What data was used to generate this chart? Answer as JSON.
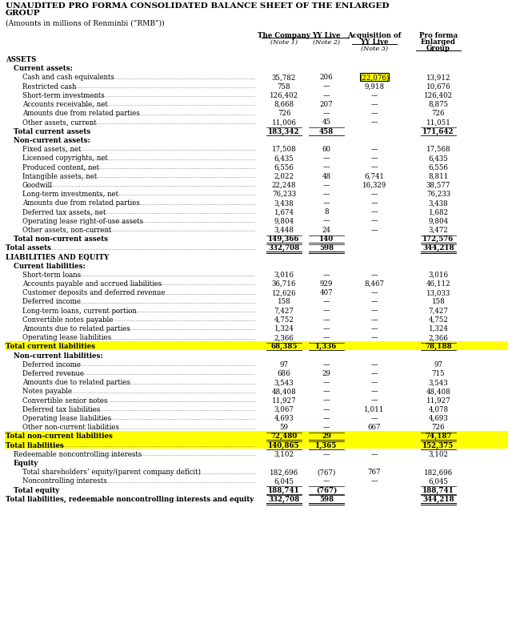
{
  "title_line1": "UNAUDITED PRO FORMA CONSOLIDATED BALANCE SHEET OF THE ENLARGED",
  "title_line2": "GROUP",
  "subtitle": "(Amounts in millions of Renminbi (“RMB”))",
  "rows": [
    {
      "label": "ASSETS",
      "level": 0,
      "bold": true,
      "values": [
        "",
        "",
        "",
        ""
      ],
      "style": "header"
    },
    {
      "label": "Current assets:",
      "level": 1,
      "bold": true,
      "values": [
        "",
        "",
        "",
        ""
      ],
      "style": "subheader"
    },
    {
      "label": "Cash and cash equivalents",
      "level": 2,
      "bold": false,
      "values": [
        "35,782",
        "206",
        "(22,076)",
        "13,912"
      ],
      "style": "normal",
      "highlight_col2": true,
      "dots": true
    },
    {
      "label": "Restricted cash",
      "level": 2,
      "bold": false,
      "values": [
        "758",
        "—",
        "9,918",
        "10,676"
      ],
      "style": "normal",
      "dots": true
    },
    {
      "label": "Short-term investments",
      "level": 2,
      "bold": false,
      "values": [
        "126,402",
        "—",
        "—",
        "126,402"
      ],
      "style": "normal",
      "dots": true
    },
    {
      "label": "Accounts receivable, net",
      "level": 2,
      "bold": false,
      "values": [
        "8,668",
        "207",
        "—",
        "8,875"
      ],
      "style": "normal",
      "dots": true
    },
    {
      "label": "Amounts due from related parties",
      "level": 2,
      "bold": false,
      "values": [
        "726",
        "—",
        "—",
        "726"
      ],
      "style": "normal",
      "dots": true
    },
    {
      "label": "Other assets, current",
      "level": 2,
      "bold": false,
      "values": [
        "11,006",
        "45",
        "—",
        "11,051"
      ],
      "style": "normal",
      "dots": true
    },
    {
      "label": "Total current assets",
      "level": 1,
      "bold": true,
      "values": [
        "183,342",
        "458",
        "",
        "171,642"
      ],
      "style": "total_single"
    },
    {
      "label": "Non-current assets:",
      "level": 1,
      "bold": true,
      "values": [
        "",
        "",
        "",
        ""
      ],
      "style": "subheader"
    },
    {
      "label": "Fixed assets, net",
      "level": 2,
      "bold": false,
      "values": [
        "17,508",
        "60",
        "—",
        "17,568"
      ],
      "style": "normal",
      "dots": true
    },
    {
      "label": "Licensed copyrights, net",
      "level": 2,
      "bold": false,
      "values": [
        "6,435",
        "—",
        "—",
        "6,435"
      ],
      "style": "normal",
      "dots": true
    },
    {
      "label": "Produced content, net",
      "level": 2,
      "bold": false,
      "values": [
        "6,556",
        "—",
        "—",
        "6,556"
      ],
      "style": "normal",
      "dots": true
    },
    {
      "label": "Intangible assets, net",
      "level": 2,
      "bold": false,
      "values": [
        "2,022",
        "48",
        "6,741",
        "8,811"
      ],
      "style": "normal",
      "dots": true
    },
    {
      "label": "Goodwill",
      "level": 2,
      "bold": false,
      "values": [
        "22,248",
        "—",
        "16,329",
        "38,577"
      ],
      "style": "normal",
      "dots": true
    },
    {
      "label": "Long-term investments, net",
      "level": 2,
      "bold": false,
      "values": [
        "76,233",
        "—",
        "—",
        "76,233"
      ],
      "style": "normal",
      "dots": true
    },
    {
      "label": "Amounts due from related parties",
      "level": 2,
      "bold": false,
      "values": [
        "3,438",
        "—",
        "—",
        "3,438"
      ],
      "style": "normal",
      "dots": true
    },
    {
      "label": "Deferred tax assets, net",
      "level": 2,
      "bold": false,
      "values": [
        "1,674",
        "8",
        "—",
        "1,682"
      ],
      "style": "normal",
      "dots": true
    },
    {
      "label": "Operating lease right-of-use assets",
      "level": 2,
      "bold": false,
      "values": [
        "9,804",
        "—",
        "—",
        "9,804"
      ],
      "style": "normal",
      "dots": true
    },
    {
      "label": "Other assets, non-current",
      "level": 2,
      "bold": false,
      "values": [
        "3,448",
        "24",
        "—",
        "3,472"
      ],
      "style": "normal",
      "dots": true
    },
    {
      "label": "Total non-current assets",
      "level": 1,
      "bold": true,
      "values": [
        "149,366",
        "140",
        "",
        "172,576"
      ],
      "style": "total_single"
    },
    {
      "label": "Total assets",
      "level": 0,
      "bold": true,
      "values": [
        "332,708",
        "598",
        "",
        "344,218"
      ],
      "style": "total_double",
      "dots": true
    },
    {
      "label": "LIABILITIES AND EQUITY",
      "level": 0,
      "bold": true,
      "values": [
        "",
        "",
        "",
        ""
      ],
      "style": "header"
    },
    {
      "label": "Current liabilities:",
      "level": 1,
      "bold": true,
      "values": [
        "",
        "",
        "",
        ""
      ],
      "style": "subheader"
    },
    {
      "label": "Short-term loans",
      "level": 2,
      "bold": false,
      "values": [
        "3,016",
        "—",
        "—",
        "3,016"
      ],
      "style": "normal",
      "dots": true
    },
    {
      "label": "Accounts payable and accrued liabilities",
      "level": 2,
      "bold": false,
      "values": [
        "36,716",
        "929",
        "8,467",
        "46,112"
      ],
      "style": "normal",
      "dots": true
    },
    {
      "label": "Customer deposits and deferred revenue",
      "level": 2,
      "bold": false,
      "values": [
        "12,626",
        "407",
        "—",
        "13,033"
      ],
      "style": "normal",
      "dots": true
    },
    {
      "label": "Deferred income",
      "level": 2,
      "bold": false,
      "values": [
        "158",
        "—",
        "—",
        "158"
      ],
      "style": "normal",
      "dots": true
    },
    {
      "label": "Long-term loans, current portion",
      "level": 2,
      "bold": false,
      "values": [
        "7,427",
        "—",
        "—",
        "7,427"
      ],
      "style": "normal",
      "dots": true
    },
    {
      "label": "Convertible notes payable",
      "level": 2,
      "bold": false,
      "values": [
        "4,752",
        "—",
        "—",
        "4,752"
      ],
      "style": "normal",
      "dots": true
    },
    {
      "label": "Amounts due to related parties",
      "level": 2,
      "bold": false,
      "values": [
        "1,324",
        "—",
        "—",
        "1,324"
      ],
      "style": "normal",
      "dots": true
    },
    {
      "label": "Operating lease liabilities",
      "level": 2,
      "bold": false,
      "values": [
        "2,366",
        "—",
        "—",
        "2,366"
      ],
      "style": "normal",
      "dots": true
    },
    {
      "label": "Total current liabilities",
      "level": 0,
      "bold": true,
      "values": [
        "68,385",
        "1,336",
        "",
        "78,188"
      ],
      "style": "total_highlight"
    },
    {
      "label": "Non-current liabilities:",
      "level": 1,
      "bold": true,
      "values": [
        "",
        "",
        "",
        ""
      ],
      "style": "subheader"
    },
    {
      "label": "Deferred income",
      "level": 2,
      "bold": false,
      "values": [
        "97",
        "—",
        "—",
        "97"
      ],
      "style": "normal",
      "dots": true
    },
    {
      "label": "Deferred revenue",
      "level": 2,
      "bold": false,
      "values": [
        "686",
        "29",
        "—",
        "715"
      ],
      "style": "normal",
      "dots": true
    },
    {
      "label": "Amounts due to related parties",
      "level": 2,
      "bold": false,
      "values": [
        "3,543",
        "—",
        "—",
        "3,543"
      ],
      "style": "normal",
      "dots": true
    },
    {
      "label": "Notes payable",
      "level": 2,
      "bold": false,
      "values": [
        "48,408",
        "—",
        "—",
        "48,408"
      ],
      "style": "normal",
      "dots": true
    },
    {
      "label": "Convertible senior notes",
      "level": 2,
      "bold": false,
      "values": [
        "11,927",
        "—",
        "—",
        "11,927"
      ],
      "style": "normal",
      "dots": true
    },
    {
      "label": "Deferred tax liabilities",
      "level": 2,
      "bold": false,
      "values": [
        "3,067",
        "—",
        "1,011",
        "4,078"
      ],
      "style": "normal",
      "dots": true
    },
    {
      "label": "Operating lease liabilities",
      "level": 2,
      "bold": false,
      "values": [
        "4,693",
        "—",
        "—",
        "4,693"
      ],
      "style": "normal",
      "dots": true
    },
    {
      "label": "Other non-current liabilities",
      "level": 2,
      "bold": false,
      "values": [
        "59",
        "—",
        "667",
        "726"
      ],
      "style": "normal",
      "dots": true
    },
    {
      "label": "Total non-current liabilities",
      "level": 0,
      "bold": true,
      "values": [
        "72,480",
        "29",
        "",
        "74,187"
      ],
      "style": "total_highlight"
    },
    {
      "label": "Total liabilities",
      "level": 0,
      "bold": true,
      "values": [
        "140,865",
        "1,365",
        "",
        "152,375"
      ],
      "style": "total_highlight",
      "dots": true
    },
    {
      "label": "Redeemable noncontrolling interests",
      "level": 1,
      "bold": false,
      "values": [
        "3,102",
        "—",
        "—",
        "3,102"
      ],
      "style": "normal",
      "dots": true
    },
    {
      "label": "Equity",
      "level": 1,
      "bold": true,
      "values": [
        "",
        "",
        "",
        ""
      ],
      "style": "subheader"
    },
    {
      "label": "Total shareholders’ equity/(parent company deficit)",
      "level": 2,
      "bold": false,
      "values": [
        "182,696",
        "(767)",
        "767",
        "182,696"
      ],
      "style": "normal",
      "dots": true
    },
    {
      "label": "Noncontrolling interests",
      "level": 2,
      "bold": false,
      "values": [
        "6,045",
        "—",
        "—",
        "6,045"
      ],
      "style": "normal",
      "dots": true
    },
    {
      "label": "Total equity",
      "level": 1,
      "bold": true,
      "values": [
        "188,741",
        "(767)",
        "",
        "188,741"
      ],
      "style": "total_single"
    },
    {
      "label": "Total liabilities, redeemable noncontrolling interests and equity",
      "level": 0,
      "bold": true,
      "values": [
        "332,708",
        "598",
        "",
        "344,218"
      ],
      "style": "total_double",
      "dots": true
    }
  ]
}
